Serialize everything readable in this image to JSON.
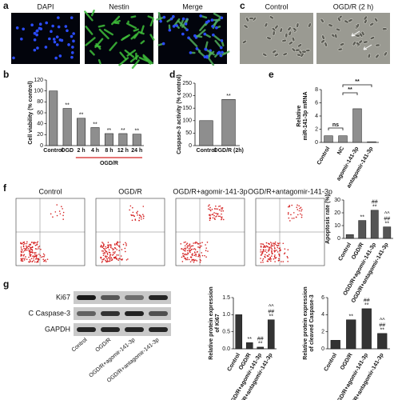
{
  "panels": {
    "a": {
      "label": "a",
      "images": [
        "DAPI",
        "Nestin",
        "Merge"
      ]
    },
    "b": {
      "label": "b"
    },
    "c": {
      "label": "c",
      "images": [
        "Control",
        "OGD/R (2 h)"
      ]
    },
    "d": {
      "label": "d"
    },
    "e": {
      "label": "e"
    },
    "f": {
      "label": "f",
      "plots": [
        "Control",
        "OGD/R",
        "OGD/R+agomir-141-3p",
        "OGD/R+antagomir-141-3p"
      ]
    },
    "g": {
      "label": "g",
      "blot_rows": [
        "Ki67",
        "C Caspase-3",
        "GAPDH"
      ],
      "lanes": [
        "Control",
        "OGD/R",
        "OGD/R+agomir-141-3p",
        "OGD/R+antagomir-141-3p"
      ]
    }
  },
  "chart_data": [
    {
      "type": "bar",
      "y_label": "Cell viability (% control)",
      "categories": [
        "Control",
        "OGD",
        "2 h",
        "4 h",
        "8 h",
        "12 h",
        "24 h"
      ],
      "values": [
        100,
        68,
        50,
        33,
        22,
        22,
        21
      ],
      "annotations": [
        [],
        [
          "**"
        ],
        [
          "**"
        ],
        [
          "**"
        ],
        [
          "**"
        ],
        [
          "**"
        ],
        [
          "**"
        ]
      ],
      "group_label": "OGD/R",
      "color": "#8e8e8e",
      "ylim": [
        0,
        120
      ],
      "yticks": [
        0,
        20,
        40,
        60,
        80,
        100,
        120
      ]
    },
    {
      "type": "bar",
      "y_label": "Caspase-3 activity (% control)",
      "categories": [
        "Control",
        "OGD/R (2h)"
      ],
      "values": [
        100,
        185
      ],
      "annotations": [
        [],
        [
          "**"
        ]
      ],
      "color": "#8e8e8e",
      "ylim": [
        0,
        250
      ],
      "yticks": [
        0,
        50,
        100,
        150,
        200,
        250
      ]
    },
    {
      "type": "bar",
      "y_label": [
        "Relative",
        "miR-141-3p mRNA"
      ],
      "categories": [
        "Control",
        "NC",
        "agomir-141-3p",
        "antagomir-141-3p"
      ],
      "values": [
        1,
        1,
        5.1,
        0.1
      ],
      "annotations": [
        [],
        [],
        [],
        []
      ],
      "significance": [
        "ns",
        "**",
        "**"
      ],
      "color": "#8e8e8e",
      "ylim": [
        0,
        8
      ],
      "yticks": [
        0,
        2,
        4,
        6,
        8
      ]
    },
    {
      "type": "bar",
      "y_label": "Apoptosis rate (%)",
      "categories": [
        "Control",
        "OGD/R",
        "OGD/R+agomir-141-3p",
        "OGD/R+antagomir-141-3p"
      ],
      "values": [
        3,
        14,
        22,
        9
      ],
      "annotations": [
        [],
        [
          "**"
        ],
        [
          "**",
          "##"
        ],
        [
          "**",
          "##",
          "^^"
        ]
      ],
      "color": "#555555",
      "ylim": [
        0,
        30
      ],
      "yticks": [
        0,
        10,
        20,
        30
      ]
    },
    {
      "type": "bar",
      "y_label": [
        "Relative protein expression",
        "of Ki67"
      ],
      "categories": [
        "Control",
        "OGD/R",
        "OGD/R+agomir-141-3p",
        "OGD/R+antagomir-141-3p"
      ],
      "values": [
        1.0,
        0.18,
        0.05,
        0.85
      ],
      "annotations": [
        [],
        [
          "**"
        ],
        [
          "**",
          "##"
        ],
        [
          "**",
          "##",
          "^^"
        ]
      ],
      "color": "#333333",
      "ylim": [
        0,
        1.5
      ],
      "yticks": [
        {
          "value": 0,
          "label": "0.0"
        },
        {
          "value": 0.5,
          "label": "0.5"
        },
        {
          "value": 1,
          "label": "1.0"
        },
        {
          "value": 1.5,
          "label": "1.5"
        }
      ]
    },
    {
      "type": "bar",
      "y_label": [
        "Relative protein expression",
        "of cleaved Caspase-3"
      ],
      "categories": [
        "Control",
        "OGD/R",
        "OGD/R+agomir-141-3p",
        "OGD/R+antagomir-141-3p"
      ],
      "values": [
        1,
        3.4,
        4.7,
        1.8
      ],
      "annotations": [
        [],
        [
          "**"
        ],
        [
          "**",
          "##"
        ],
        [
          "**",
          "##",
          "^^"
        ]
      ],
      "color": "#333333",
      "ylim": [
        0,
        6
      ],
      "yticks": [
        0,
        2,
        4,
        6
      ]
    }
  ]
}
